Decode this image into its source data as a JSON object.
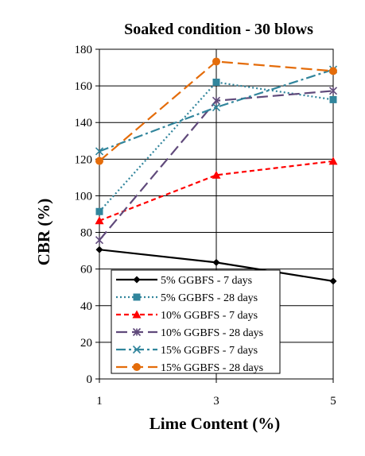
{
  "chart_data": {
    "type": "line",
    "title": "Soaked condition - 30 blows",
    "xlabel": "Lime Content (%)",
    "ylabel": "CBR (%)",
    "x": [
      1,
      3,
      5
    ],
    "xlim": [
      1,
      5
    ],
    "ylim": [
      0,
      180
    ],
    "x_ticks": [
      "1",
      "3",
      "5"
    ],
    "y_ticks": [
      "0",
      "20",
      "40",
      "60",
      "80",
      "100",
      "120",
      "140",
      "160",
      "180"
    ],
    "grid": "horizontal major gridlines, vertical gridline at x=3",
    "legend_position": "lower-left inside plot",
    "series": [
      {
        "name": "5% GGBFS - 7 days",
        "values": [
          70.6,
          63.6,
          53.4
        ],
        "color": "#000000",
        "dash": "solid",
        "marker": "diamond"
      },
      {
        "name": "5% GGBFS - 28 days",
        "values": [
          91.4,
          162,
          152.5
        ],
        "color": "#31859C",
        "dash": "dotted",
        "marker": "square"
      },
      {
        "name": "10% GGBFS - 7 days",
        "values": [
          86.4,
          111.3,
          118.9
        ],
        "color": "#FF0000",
        "dash": "dashed",
        "marker": "triangle"
      },
      {
        "name": "10% GGBFS - 28 days",
        "values": [
          75.8,
          151.9,
          157.3
        ],
        "color": "#604A7B",
        "dash": "longdash",
        "marker": "star"
      },
      {
        "name": "15% GGBFS - 7 days",
        "values": [
          124.3,
          148.3,
          168.9
        ],
        "color": "#31859C",
        "dash": "dashdot",
        "marker": "x"
      },
      {
        "name": "15% GGBFS - 28 days",
        "values": [
          119,
          173.3,
          168.1
        ],
        "color": "#E46C0A",
        "dash": "longdash",
        "marker": "circle"
      }
    ]
  }
}
